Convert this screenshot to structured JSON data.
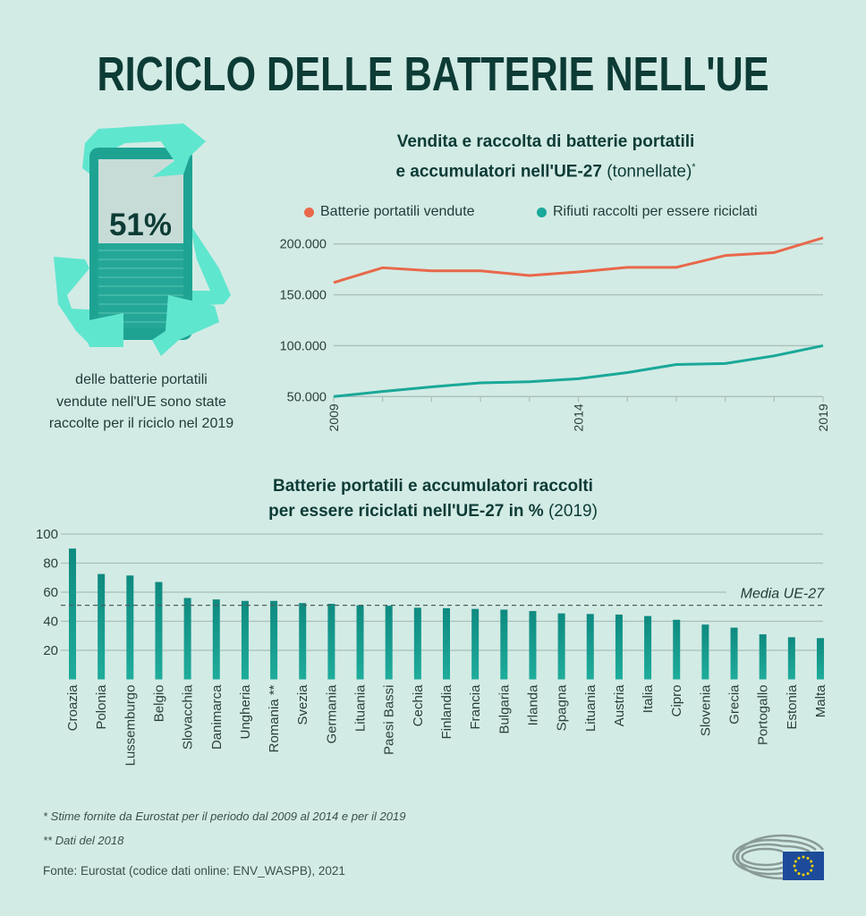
{
  "title": "RICICLO DELLE BATTERIE NELL'UE",
  "infographic": {
    "percent_label": "51%",
    "percent_value": 51,
    "caption": [
      "delle batterie portatili",
      "vendute nell'UE sono state",
      "raccolte per il riciclo nel 2019"
    ]
  },
  "colors": {
    "background": "#d3ebe5",
    "title": "#0d3b36",
    "orange": "#e8684a",
    "teal": "#1aa898",
    "bar": "#189a8c",
    "grid": "#a9bfba"
  },
  "chart_data": [
    {
      "type": "line",
      "title_bold_1": "Vendita e raccolta di batterie portatili",
      "title_bold_2": "e accumulatori nell'UE-27",
      "title_unit": " (tonnellate)",
      "title_mark": "*",
      "x": [
        2009,
        2010,
        2011,
        2012,
        2013,
        2014,
        2015,
        2016,
        2017,
        2018,
        2019
      ],
      "x_tick_labels": [
        "2009",
        "2014",
        "2019"
      ],
      "y_tick_labels": [
        "200.000",
        "150.000",
        "100.000",
        "50.000"
      ],
      "y_ticks": [
        200000,
        150000,
        100000,
        50000
      ],
      "ylim": [
        50000,
        200000
      ],
      "grid": true,
      "legend_position": "top",
      "series": [
        {
          "name": "Batterie portatili vendute",
          "color": "#e8684a",
          "values": [
            162000,
            176600,
            173600,
            173600,
            169000,
            172500,
            177000,
            177000,
            188600,
            191500,
            206000
          ]
        },
        {
          "name": "Rifiuti raccolti per essere riciclati",
          "color": "#1aa898",
          "values": [
            50000,
            55000,
            59500,
            63500,
            64500,
            67500,
            73600,
            81500,
            82500,
            90000,
            100000
          ]
        }
      ]
    },
    {
      "type": "bar",
      "title_bold_1": "Batterie portatili e accumulatori raccolti",
      "title_bold_2": "per essere riciclati nell'UE-27 in %",
      "title_year": " (2019)",
      "categories": [
        "Croazia",
        "Polonia",
        "Lussemburgo",
        "Belgio",
        "Slovacchia",
        "Danimarca",
        "Ungheria",
        "Romania **",
        "Svezia",
        "Germania",
        "Lituania",
        "Paesi Bassi",
        "Cechia",
        "Finlandia",
        "Francia",
        "Bulgaria",
        "Irlanda",
        "Spagna",
        "Lituania",
        "Austria",
        "Italia",
        "Cipro",
        "Slovenia",
        "Grecia",
        "Portogallo",
        "Estonia",
        "Malta"
      ],
      "values": [
        90,
        72.5,
        71.5,
        67,
        56,
        55,
        54,
        54,
        52.5,
        52,
        51,
        50.7,
        49.3,
        49,
        48.5,
        48,
        47,
        45.4,
        45,
        44.6,
        43.6,
        41,
        37.7,
        35.6,
        31,
        29,
        28.4
      ],
      "y_tick_labels": [
        "100",
        "80",
        "60",
        "40",
        "20"
      ],
      "y_ticks": [
        100,
        80,
        60,
        40,
        20
      ],
      "ylim": [
        0,
        100
      ],
      "grid": true,
      "reference_line": {
        "label": "Media UE-27",
        "value": 51
      }
    }
  ],
  "footer": {
    "note1": "* Stime fornite da Eurostat per il periodo dal 2009 al 2014 e per il 2019",
    "note2": "** Dati del 2018",
    "source": "Fonte: Eurostat (codice dati online: ENV_WASPB), 2021"
  }
}
